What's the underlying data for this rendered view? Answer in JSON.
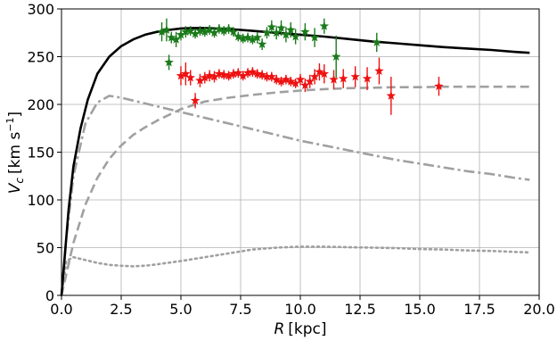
{
  "chart_data": {
    "type": "line",
    "xlabel_italic": "R",
    "xlabel_unit": "[kpc]",
    "ylabel_italic": "V",
    "ylabel_sub": "c",
    "ylabel_unit": "[km s",
    "ylabel_sup": "−1",
    "ylabel_close": "]",
    "xlim": [
      0,
      20
    ],
    "ylim": [
      0,
      300
    ],
    "xticks": [
      0.0,
      2.5,
      5.0,
      7.5,
      10.0,
      12.5,
      15.0,
      17.5,
      20.0
    ],
    "xtick_labels": [
      "0.0",
      "2.5",
      "5.0",
      "7.5",
      "10.0",
      "12.5",
      "15.0",
      "17.5",
      "20.0"
    ],
    "yticks": [
      0,
      50,
      100,
      150,
      200,
      250,
      300
    ],
    "ytick_labels": [
      "0",
      "50",
      "100",
      "150",
      "200",
      "250",
      "300"
    ],
    "grid": true,
    "colors": {
      "total": "#000000",
      "components": "#a0a0a0",
      "green_points": "#1a7a1a",
      "red_points": "#ee1111"
    },
    "series": [
      {
        "style": "solid",
        "x": [
          0.0,
          0.15,
          0.3,
          0.5,
          0.8,
          1.1,
          1.5,
          2.0,
          2.5,
          3.0,
          3.5,
          4.0,
          4.5,
          5.0,
          5.5,
          6.0,
          6.5,
          7.0,
          7.5,
          8.0,
          9.0,
          10.0,
          11.0,
          12.0,
          13.0,
          14.0,
          15.0,
          16.0,
          17.0,
          18.0,
          19.0,
          19.6
        ],
        "y": [
          0,
          45,
          90,
          135,
          175,
          205,
          232,
          250,
          261,
          268,
          273,
          276,
          278,
          279.5,
          280,
          280,
          279.5,
          279,
          278,
          277,
          275,
          273,
          271,
          268.5,
          266,
          264,
          262,
          260,
          258.5,
          257,
          255,
          254
        ]
      },
      {
        "style": "dashdot",
        "x": [
          0.0,
          0.2,
          0.5,
          1.0,
          1.5,
          2.0,
          2.5,
          3.0,
          4.0,
          5.0,
          6.0,
          7.0,
          8.0,
          9.0,
          10.0,
          11.0,
          12.0,
          13.0,
          14.0,
          15.0,
          16.0,
          17.0,
          18.0,
          19.0,
          19.6
        ],
        "y": [
          0,
          60,
          125,
          180,
          202,
          209,
          207,
          204,
          198,
          192,
          186,
          180,
          174,
          168,
          162,
          157,
          152,
          147,
          142,
          138,
          134,
          130,
          127,
          123,
          121
        ]
      },
      {
        "style": "dashed",
        "x": [
          0.0,
          0.2,
          0.5,
          1.0,
          1.5,
          2.0,
          2.5,
          3.0,
          3.5,
          4.0,
          5.0,
          6.0,
          7.0,
          8.0,
          9.0,
          10.0,
          11.0,
          12.0,
          13.0,
          14.0,
          15.0,
          16.0,
          17.0,
          18.0,
          19.0,
          19.6
        ],
        "y": [
          0,
          22,
          55,
          95,
          123,
          143,
          157,
          168,
          176,
          183,
          195,
          203,
          207,
          210,
          212.5,
          214.5,
          216,
          217,
          217.5,
          218,
          218,
          218.5,
          218.5,
          218.5,
          218.5,
          218.5
        ]
      },
      {
        "style": "dotted",
        "x": [
          0.0,
          0.2,
          0.5,
          1.0,
          1.5,
          2.0,
          2.5,
          3.0,
          3.5,
          4.0,
          5.0,
          6.0,
          7.0,
          8.0,
          9.0,
          10.0,
          11.0,
          12.0,
          13.0,
          14.0,
          15.0,
          16.0,
          17.0,
          18.0,
          19.0,
          19.6
        ],
        "y": [
          0,
          36,
          40,
          37,
          34,
          32,
          31,
          30.5,
          31,
          32.5,
          36,
          40,
          44,
          48,
          50,
          51,
          51,
          50.5,
          50,
          49.5,
          48.5,
          48,
          47,
          46.5,
          45.5,
          45
        ]
      }
    ],
    "points_green": {
      "x": [
        4.2,
        4.4,
        4.6,
        4.8,
        5.0,
        5.2,
        5.4,
        5.6,
        5.8,
        6.0,
        6.2,
        6.4,
        6.6,
        6.8,
        7.0,
        7.2,
        7.4,
        7.6,
        7.8,
        8.0,
        8.2,
        8.4,
        8.6,
        8.8,
        9.0,
        9.2,
        9.4,
        9.6,
        9.8,
        10.2,
        10.6,
        11.0,
        11.5,
        13.2
      ],
      "y": [
        276,
        278,
        270,
        268,
        273,
        276,
        277,
        274,
        277,
        276,
        278,
        275,
        279,
        277,
        279,
        276,
        271,
        269,
        270,
        268,
        270,
        263,
        275,
        281,
        275,
        280,
        273,
        278,
        271,
        276,
        270,
        282,
        250,
        265
      ],
      "err": [
        10,
        12,
        6,
        8,
        6,
        6,
        5,
        5,
        5,
        5,
        5,
        5,
        5,
        5,
        5,
        5,
        5,
        5,
        5,
        5,
        6,
        6,
        6,
        7,
        7,
        8,
        8,
        8,
        8,
        9,
        10,
        8,
        22,
        10
      ],
      "extra_x": [
        4.5
      ],
      "extra_y": [
        244
      ],
      "extra_err": [
        8
      ]
    },
    "points_red": {
      "x": [
        5.0,
        5.2,
        5.4,
        5.6,
        5.8,
        6.0,
        6.2,
        6.4,
        6.6,
        6.8,
        7.0,
        7.2,
        7.4,
        7.6,
        7.8,
        8.0,
        8.2,
        8.4,
        8.6,
        8.8,
        9.0,
        9.2,
        9.4,
        9.6,
        9.8,
        10.0,
        10.2,
        10.4,
        10.6,
        10.8,
        11.0,
        11.4,
        11.8,
        12.3,
        12.8,
        13.3,
        13.8,
        15.8
      ],
      "y": [
        230,
        232,
        228,
        204,
        225,
        228,
        230,
        229,
        232,
        231,
        230,
        232,
        233,
        230,
        233,
        234,
        232,
        231,
        229,
        229,
        226,
        224,
        226,
        224,
        222,
        226,
        220,
        224,
        229,
        234,
        232,
        226,
        227,
        229,
        227,
        235,
        209,
        219
      ],
      "err": [
        10,
        12,
        8,
        8,
        7,
        6,
        6,
        6,
        5,
        5,
        5,
        5,
        5,
        5,
        5,
        5,
        5,
        5,
        5,
        5,
        5,
        5,
        5,
        5,
        5,
        6,
        7,
        7,
        8,
        9,
        10,
        10,
        10,
        11,
        12,
        14,
        20,
        10
      ]
    }
  }
}
